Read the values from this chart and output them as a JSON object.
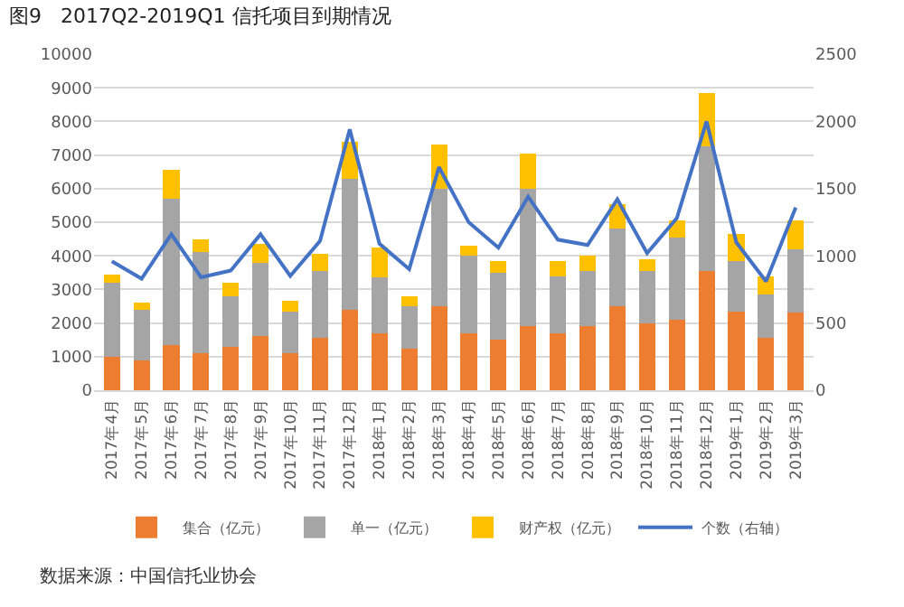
{
  "chart_data": {
    "type": "bar",
    "stacked": true,
    "title": "图9   2017Q2-2019Q1 信托项目到期情况",
    "categories": [
      "2017年4月",
      "2017年5月",
      "2017年6月",
      "2017年7月",
      "2017年8月",
      "2017年9月",
      "2017年10月",
      "2017年11月",
      "2017年12月",
      "2018年1月",
      "2018年2月",
      "2018年3月",
      "2018年4月",
      "2018年5月",
      "2018年6月",
      "2018年7月",
      "2018年8月",
      "2018年9月",
      "2018年10月",
      "2018年11月",
      "2018年12月",
      "2019年1月",
      "2019年2月",
      "2019年3月"
    ],
    "series": [
      {
        "name": "集合（亿元）",
        "color": "#ed7d31",
        "values": [
          1000,
          900,
          1350,
          1100,
          1300,
          1600,
          1100,
          1550,
          2400,
          1700,
          1250,
          2500,
          1700,
          1500,
          1900,
          1700,
          1900,
          2500,
          2000,
          2100,
          3550,
          2350,
          1550,
          2300
        ]
      },
      {
        "name": "单一（亿元）",
        "color": "#a5a5a5",
        "values": [
          2200,
          1500,
          4350,
          3000,
          1500,
          2200,
          1250,
          2000,
          3900,
          1650,
          1250,
          3500,
          2300,
          2000,
          4100,
          1700,
          1650,
          2300,
          1550,
          2450,
          3700,
          1500,
          1300,
          1900
        ]
      },
      {
        "name": "财产权（亿元）",
        "color": "#ffc000",
        "values": [
          250,
          200,
          850,
          400,
          400,
          550,
          300,
          500,
          1100,
          900,
          300,
          1300,
          300,
          350,
          1050,
          450,
          450,
          750,
          350,
          500,
          1600,
          800,
          550,
          850
        ]
      },
      {
        "name": "个数（右轴）",
        "type": "line",
        "axis": "y2",
        "color": "#4472c4",
        "values": [
          960,
          830,
          1160,
          840,
          890,
          1160,
          850,
          1110,
          1940,
          1090,
          900,
          1660,
          1250,
          1060,
          1440,
          1120,
          1080,
          1420,
          1020,
          1280,
          2000,
          1100,
          810,
          1360
        ]
      }
    ],
    "ylim": [
      0,
      10000
    ],
    "yticks": [
      0,
      1000,
      2000,
      3000,
      4000,
      5000,
      6000,
      7000,
      8000,
      9000,
      10000
    ],
    "y2lim": [
      0,
      2500
    ],
    "y2ticks": [
      0,
      500,
      1000,
      1500,
      2000,
      2500
    ],
    "grid": "y",
    "legend": "bottom",
    "marker": "none",
    "line_style": "solid",
    "annotations": [
      "数据来源：中国信托业协会"
    ]
  }
}
